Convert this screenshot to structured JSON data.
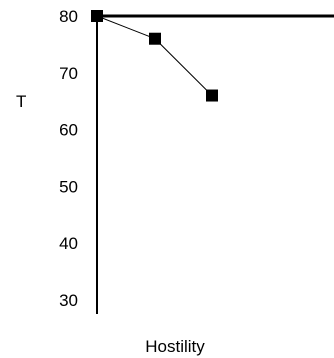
{
  "chart_data": {
    "type": "line",
    "title": "",
    "xlabel": "Hostility",
    "ylabel": "T",
    "ylim": [
      30,
      80
    ],
    "yticks": [
      30,
      40,
      50,
      60,
      70,
      80
    ],
    "reference_line": 80,
    "series": [
      {
        "values": [
          80,
          76,
          66
        ]
      }
    ],
    "grid": false,
    "legend": "none",
    "colors": {
      "line": "#000000",
      "marker": "#000000"
    }
  }
}
